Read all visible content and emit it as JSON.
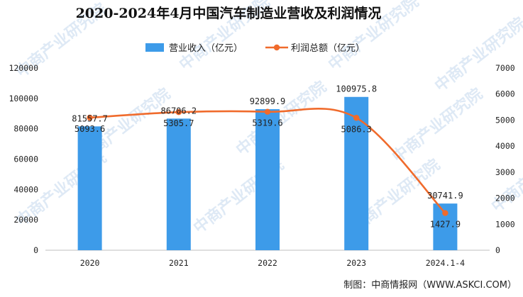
{
  "chart_data": {
    "type": "bar+line",
    "title": "2020-2024年4月中国汽车制造业营收及利润情况",
    "categories": [
      "2020",
      "2021",
      "2022",
      "2023",
      "2024.1-4"
    ],
    "series": [
      {
        "name": "营业收入（亿元）",
        "type": "bar",
        "axis": "left",
        "values": [
          81557.7,
          86706.2,
          92899.9,
          100975.8,
          30741.9
        ],
        "labels": [
          "81557.7",
          "86706.2",
          "92899.9",
          "100975.8",
          "30741.9"
        ],
        "color": "#3d9be9"
      },
      {
        "name": "利润总额（亿元）",
        "type": "line",
        "axis": "right",
        "values": [
          5093.6,
          5305.7,
          5319.6,
          5086.3,
          1427.9
        ],
        "labels": [
          "5093.6",
          "5305.7",
          "5319.6",
          "5086.3",
          "1427.9"
        ],
        "color": "#f06b2c"
      }
    ],
    "y_left": {
      "ylim": [
        0,
        120000
      ],
      "ticks": [
        "0",
        "20000",
        "40000",
        "60000",
        "80000",
        "100000",
        "120000"
      ]
    },
    "y_right": {
      "ylim": [
        0,
        7000
      ],
      "ticks": [
        "0",
        "1000",
        "2000",
        "3000",
        "4000",
        "5000",
        "6000",
        "7000"
      ]
    },
    "legend_position": "top-center",
    "grid": false
  },
  "source": "制图：中商情报网（WWW.ASKCI.COM）",
  "watermark": {
    "text": "中商产业研究院"
  }
}
